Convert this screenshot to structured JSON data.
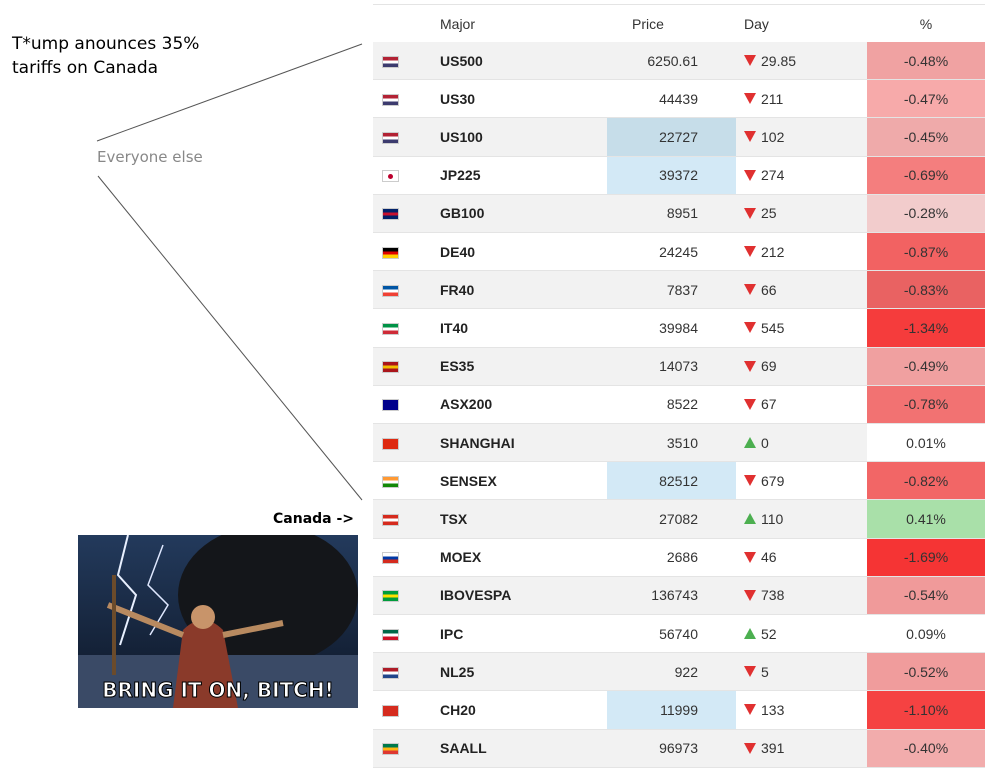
{
  "annotations": {
    "headline": [
      "T*ump anounces 35%",
      "tariffs on Canada"
    ],
    "everyone": "Everyone else",
    "canada": "Canada ->",
    "meme_caption": "BRING IT ON, BITCH!"
  },
  "table": {
    "header": [
      "Major",
      "Price",
      "Day",
      "%"
    ],
    "rows": [
      {
        "symbol": "US500",
        "price": "6250.61",
        "day": "29.85",
        "trend": "down",
        "pct": "-0.48%",
        "pct_color": "#f0a2a2"
      },
      {
        "symbol": "US30",
        "price": "44439",
        "day": "211",
        "trend": "down",
        "pct": "-0.47%",
        "pct_color": "#f7aaaa"
      },
      {
        "symbol": "US100",
        "price": "22727",
        "day": "102",
        "trend": "down",
        "pct": "-0.45%",
        "pct_color": "#efaaaa",
        "price_color": "#c6dde9"
      },
      {
        "symbol": "JP225",
        "price": "39372",
        "day": "274",
        "trend": "down",
        "pct": "-0.69%",
        "pct_color": "#f47e7e",
        "price_color": "#d3e9f6"
      },
      {
        "symbol": "GB100",
        "price": "8951",
        "day": "25",
        "trend": "down",
        "pct": "-0.28%",
        "pct_color": "#f2cccc"
      },
      {
        "symbol": "DE40",
        "price": "24245",
        "day": "212",
        "trend": "down",
        "pct": "-0.87%",
        "pct_color": "#f26262"
      },
      {
        "symbol": "FR40",
        "price": "7837",
        "day": "66",
        "trend": "down",
        "pct": "-0.83%",
        "pct_color": "#e96262"
      },
      {
        "symbol": "IT40",
        "price": "39984",
        "day": "545",
        "trend": "down",
        "pct": "-1.34%",
        "pct_color": "#f53c3c"
      },
      {
        "symbol": "ES35",
        "price": "14073",
        "day": "69",
        "trend": "down",
        "pct": "-0.49%",
        "pct_color": "#f0a0a0"
      },
      {
        "symbol": "ASX200",
        "price": "8522",
        "day": "67",
        "trend": "down",
        "pct": "-0.78%",
        "pct_color": "#f27272"
      },
      {
        "symbol": "SHANGHAI",
        "price": "3510",
        "day": "0",
        "trend": "up",
        "pct": "0.01%",
        "pct_color": "#ffffff"
      },
      {
        "symbol": "SENSEX",
        "price": "82512",
        "day": "679",
        "trend": "down",
        "pct": "-0.82%",
        "pct_color": "#f26666",
        "price_color": "#d3e9f6"
      },
      {
        "symbol": "TSX",
        "price": "27082",
        "day": "110",
        "trend": "up",
        "pct": "0.41%",
        "pct_color": "#a9e0a9"
      },
      {
        "symbol": "MOEX",
        "price": "2686",
        "day": "46",
        "trend": "down",
        "pct": "-1.69%",
        "pct_color": "#f53434"
      },
      {
        "symbol": "IBOVESPA",
        "price": "136743",
        "day": "738",
        "trend": "down",
        "pct": "-0.54%",
        "pct_color": "#f09a9a"
      },
      {
        "symbol": "IPC",
        "price": "56740",
        "day": "52",
        "trend": "up",
        "pct": "0.09%",
        "pct_color": "#ffffff"
      },
      {
        "symbol": "NL25",
        "price": "922",
        "day": "5",
        "trend": "down",
        "pct": "-0.52%",
        "pct_color": "#f09c9c"
      },
      {
        "symbol": "CH20",
        "price": "11999",
        "day": "133",
        "trend": "down",
        "pct": "-1.10%",
        "pct_color": "#f54242",
        "price_color": "#d3e9f6"
      },
      {
        "symbol": "SAALL",
        "price": "96973",
        "day": "391",
        "trend": "down",
        "pct": "-0.40%",
        "pct_color": "#f2acac"
      }
    ]
  }
}
